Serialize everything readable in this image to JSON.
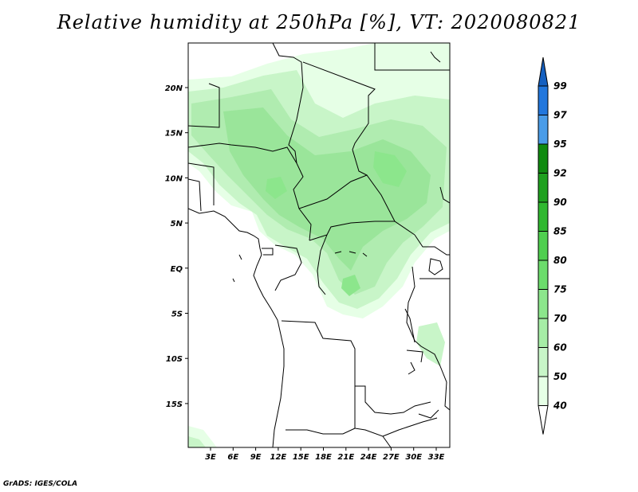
{
  "title": "Relative humidity at 250hPa [%], VT: 2020080821",
  "credit": "GrADS: IGES/COLA",
  "map": {
    "lat_ticks": [
      "20N",
      "15N",
      "10N",
      "5N",
      "EQ",
      "5S",
      "10S",
      "15S"
    ],
    "lon_ticks": [
      "3E",
      "6E",
      "9E",
      "12E",
      "15E",
      "18E",
      "21E",
      "24E",
      "27E",
      "30E",
      "33E"
    ]
  },
  "colorbar": {
    "levels": [
      "40",
      "50",
      "60",
      "70",
      "75",
      "80",
      "85",
      "90",
      "92",
      "95",
      "97",
      "99"
    ],
    "colors": [
      "#ffffff",
      "#e6ffe6",
      "#c8f5c8",
      "#a6eda6",
      "#8ce68c",
      "#6cdc6c",
      "#4fcf4f",
      "#30b830",
      "#1fa01f",
      "#108a10",
      "#4a9ce8",
      "#2277dd",
      "#1560c0"
    ]
  }
}
